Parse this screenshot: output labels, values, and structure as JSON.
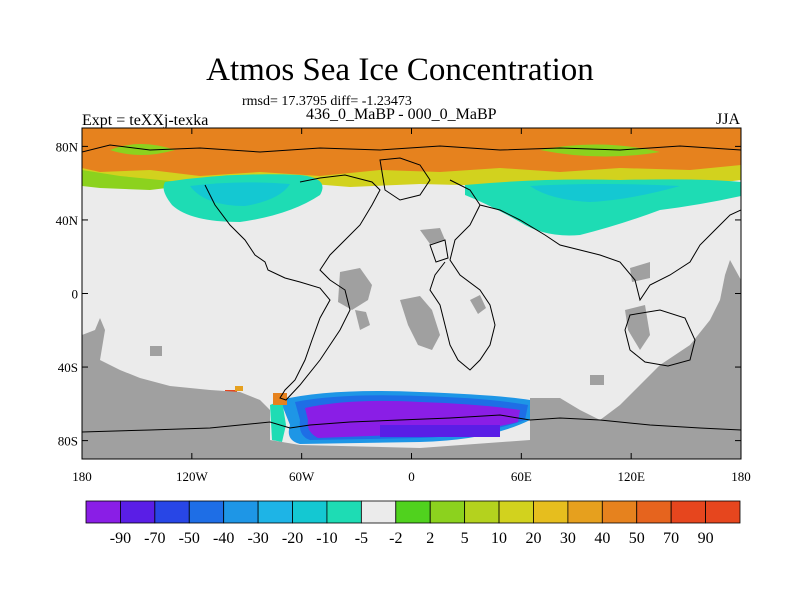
{
  "chart_data": {
    "type": "heatmap",
    "title": "Atmos Sea Ice Concentration",
    "stats_text": "rmsd= 17.3795 diff= -1.23473",
    "left_label": "Expt = teXXj-texka",
    "center_label": "436_0_MaBP - 000_0_MaBP",
    "season": "JJA",
    "x_ticks": [
      "180",
      "120W",
      "60W",
      "0",
      "60E",
      "120E",
      "180"
    ],
    "y_ticks": [
      "80N",
      "40N",
      "0",
      "40S",
      "80S"
    ],
    "xlim": [
      -180,
      180
    ],
    "ylim": [
      -90,
      90
    ],
    "colorbar": {
      "labels": [
        "-90",
        "-70",
        "-50",
        "-40",
        "-30",
        "-20",
        "-10",
        "-5",
        "-2",
        "2",
        "5",
        "10",
        "20",
        "30",
        "40",
        "50",
        "70",
        "90"
      ],
      "colors": [
        "#8a1ee6",
        "#5a1ee6",
        "#2846e6",
        "#1e6ee6",
        "#1e96e6",
        "#1eb4e6",
        "#14c8d2",
        "#1edcb4",
        "#ebebeb",
        "#50d21e",
        "#8cd21e",
        "#b4d21e",
        "#d2d21e",
        "#e6be1e",
        "#e6a01e",
        "#e6821e",
        "#e6641e",
        "#e6461e"
      ]
    },
    "regions": [
      {
        "name": "arctic-increase-band",
        "value": 50,
        "color": "#e6821e"
      },
      {
        "name": "arctic-edge",
        "value": 20,
        "color": "#d2d21e"
      },
      {
        "name": "north-pacific-decrease",
        "value": -10,
        "color": "#14c8d2"
      },
      {
        "name": "north-atlantic-decrease",
        "value": -10,
        "color": "#14c8d2"
      },
      {
        "name": "antarctic-decrease-core",
        "value": -90,
        "color": "#8a1ee6"
      },
      {
        "name": "antarctic-decrease-edge",
        "value": -40,
        "color": "#1e6ee6"
      },
      {
        "name": "land-missing",
        "color": "#a0a0a0"
      }
    ]
  }
}
